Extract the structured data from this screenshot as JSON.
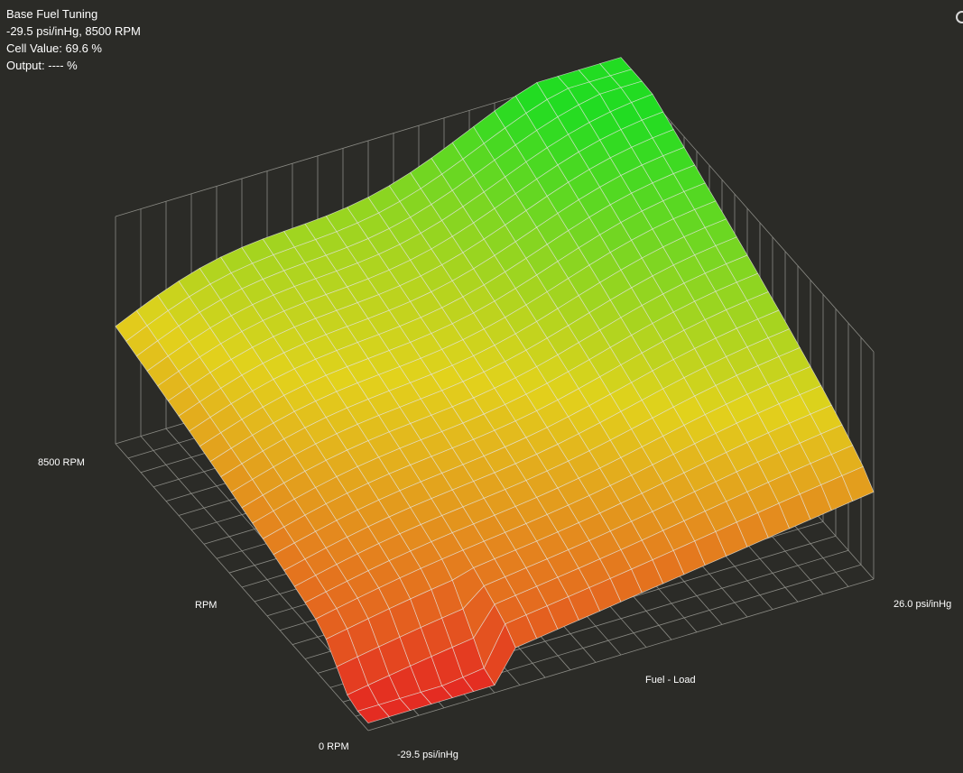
{
  "info": {
    "title": "Base Fuel Tuning",
    "cursor_position": "-29.5 psi/inHg, 8500 RPM",
    "cell_value": "Cell Value: 69.6 %",
    "output": "Output: ---- %"
  },
  "axes": {
    "rpm_max_label": "8500 RPM",
    "rpm_axis_title": "RPM",
    "rpm_min_label": "0 RPM",
    "load_min_label": "-29.5 psi/inHg",
    "load_axis_title": "Fuel - Load",
    "load_max_label": "26.0 psi/inHg"
  },
  "colors": {
    "background": "#2b2b27",
    "grid": "#8a8a84",
    "mesh": "#e6e6e0",
    "low": "#e42222",
    "mid": "#e2d21c",
    "high": "#22dc22"
  },
  "icons": {
    "corner": "options-icon"
  }
}
